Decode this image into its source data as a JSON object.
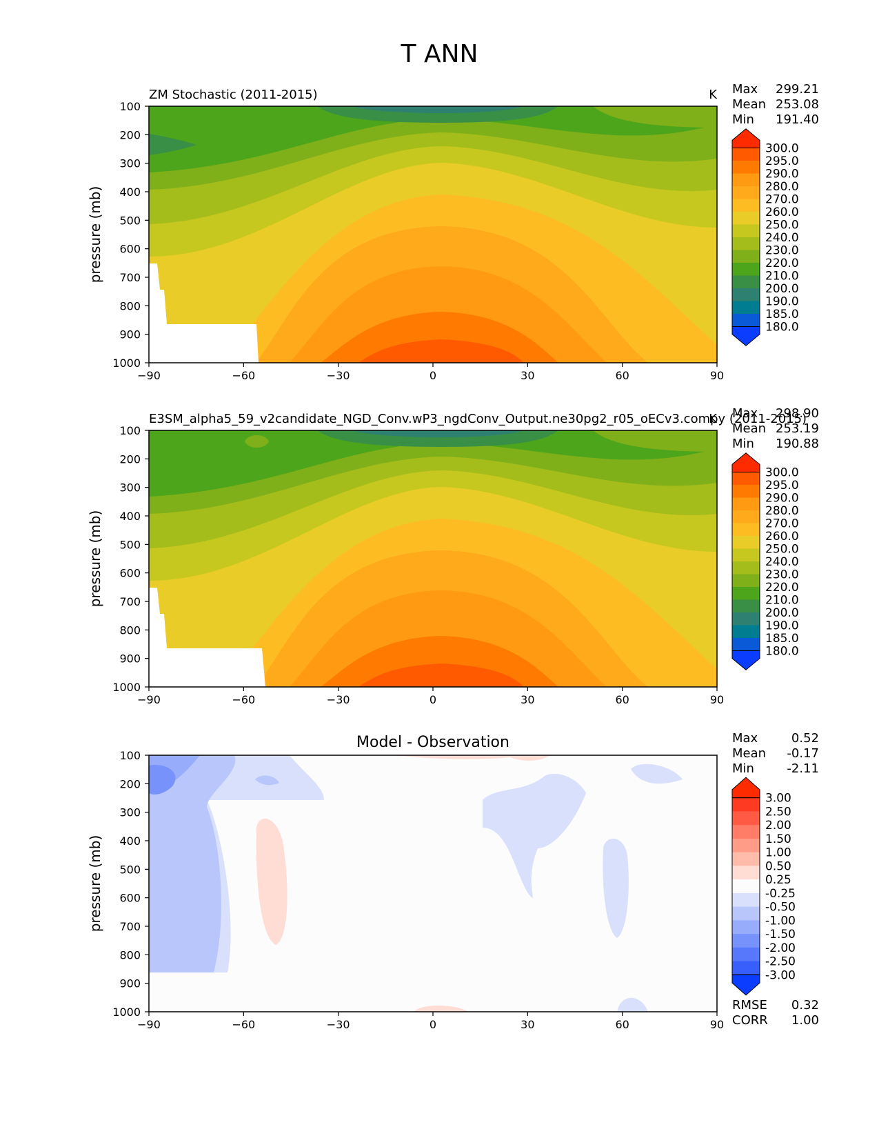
{
  "figure": {
    "title": "T ANN"
  },
  "chart_data": [
    {
      "type": "heatmap",
      "title": "ZM Stochastic (2011-2015)",
      "units": "K",
      "xlabel": "",
      "ylabel": "pressure (mb)",
      "x_ticks": [
        -90,
        -60,
        -30,
        0,
        30,
        60,
        90
      ],
      "x_tick_labels": [
        "−90",
        "−60",
        "−30",
        "0",
        "30",
        "60",
        "90"
      ],
      "y_ticks": [
        100,
        200,
        300,
        400,
        500,
        600,
        700,
        800,
        900,
        1000
      ],
      "xlim": [
        -90,
        90
      ],
      "ylim": [
        1000,
        100
      ],
      "stats": {
        "max_label": "Max",
        "max": "299.21",
        "mean_label": "Mean",
        "mean": "253.08",
        "min_label": "Min",
        "min": "191.40"
      },
      "colorbar": {
        "levels": [
          "300.0",
          "295.0",
          "290.0",
          "280.0",
          "270.0",
          "260.0",
          "250.0",
          "240.0",
          "230.0",
          "220.0",
          "210.0",
          "200.0",
          "190.0",
          "185.0",
          "180.0"
        ],
        "colors": [
          "#fe2a00",
          "#ff5a00",
          "#ff7a00",
          "#ff9a12",
          "#ffaa1a",
          "#fdbd22",
          "#e9cc27",
          "#c7c81f",
          "#a5bd1a",
          "#7fb01a",
          "#4ca51a",
          "#3a8f46",
          "#2e8070",
          "#007d90",
          "#0a5ad8",
          "#0a3dff"
        ]
      }
    },
    {
      "type": "heatmap",
      "title": "E3SM_alpha5_59_v2candidate_NGD_Conv.wP3_ngdConv_Output.ne30pg2_r05_oECv3.compy (2011-2015)",
      "units": "K",
      "ylabel": "pressure (mb)",
      "x_ticks": [
        -90,
        -60,
        -30,
        0,
        30,
        60,
        90
      ],
      "x_tick_labels": [
        "−90",
        "−60",
        "−30",
        "0",
        "30",
        "60",
        "90"
      ],
      "y_ticks": [
        100,
        200,
        300,
        400,
        500,
        600,
        700,
        800,
        900,
        1000
      ],
      "xlim": [
        -90,
        90
      ],
      "ylim": [
        1000,
        100
      ],
      "stats": {
        "max_label": "Max",
        "max": "298.90",
        "mean_label": "Mean",
        "mean": "253.19",
        "min_label": "Min",
        "min": "190.88"
      },
      "colorbar": {
        "levels": [
          "300.0",
          "295.0",
          "290.0",
          "280.0",
          "270.0",
          "260.0",
          "250.0",
          "240.0",
          "230.0",
          "220.0",
          "210.0",
          "200.0",
          "190.0",
          "185.0",
          "180.0"
        ],
        "colors": [
          "#fe2a00",
          "#ff5a00",
          "#ff7a00",
          "#ff9a12",
          "#ffaa1a",
          "#fdbd22",
          "#e9cc27",
          "#c7c81f",
          "#a5bd1a",
          "#7fb01a",
          "#4ca51a",
          "#3a8f46",
          "#2e8070",
          "#007d90",
          "#0a5ad8",
          "#0a3dff"
        ]
      }
    },
    {
      "type": "heatmap",
      "title": "Model - Observation",
      "ylabel": "pressure (mb)",
      "x_ticks": [
        -90,
        -60,
        -30,
        0,
        30,
        60,
        90
      ],
      "x_tick_labels": [
        "−90",
        "−60",
        "−30",
        "0",
        "30",
        "60",
        "90"
      ],
      "y_ticks": [
        100,
        200,
        300,
        400,
        500,
        600,
        700,
        800,
        900,
        1000
      ],
      "xlim": [
        -90,
        90
      ],
      "ylim": [
        1000,
        100
      ],
      "stats": {
        "max_label": "Max",
        "max": "0.52",
        "mean_label": "Mean",
        "mean": "-0.17",
        "min_label": "Min",
        "min": "-2.11"
      },
      "metrics": {
        "rmse_label": "RMSE",
        "rmse": "0.32",
        "corr_label": "CORR",
        "corr": "1.00"
      },
      "colorbar": {
        "levels": [
          "3.00",
          "2.50",
          "2.00",
          "1.50",
          "1.00",
          "0.50",
          "0.25",
          "-0.25",
          "-0.50",
          "-1.00",
          "-1.50",
          "-2.00",
          "-2.50",
          "-3.00"
        ],
        "colors": [
          "#fe2a00",
          "#ff3a22",
          "#ff5a44",
          "#ff7c66",
          "#ff9c88",
          "#ffbcaa",
          "#ffdcd4",
          "#fcfcfc",
          "#d8e0fc",
          "#b8c6fc",
          "#98acfc",
          "#7892fc",
          "#5878fc",
          "#385efc",
          "#0a3dff"
        ]
      }
    }
  ]
}
